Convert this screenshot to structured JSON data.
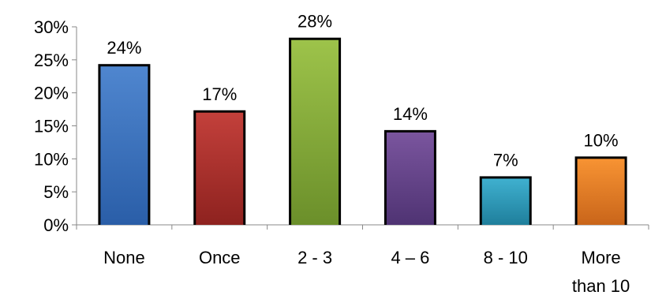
{
  "chart_data": {
    "type": "bar",
    "categories": [
      [
        "None"
      ],
      [
        "Once"
      ],
      [
        "2 - 3"
      ],
      [
        "4 – 6"
      ],
      [
        "8 - 10"
      ],
      [
        "More",
        "than 10"
      ]
    ],
    "values": [
      24,
      17,
      28,
      14,
      7,
      10
    ],
    "data_labels": [
      "24%",
      "17%",
      "28%",
      "14%",
      "7%",
      "10%"
    ],
    "bar_colors": [
      [
        "#4f86cf",
        "#2a5ea8"
      ],
      [
        "#c3403b",
        "#8e221f"
      ],
      [
        "#9dc34a",
        "#6b8f2a"
      ],
      [
        "#7a559e",
        "#4f3373"
      ],
      [
        "#3fb0cf",
        "#1f7f9c"
      ],
      [
        "#f79333",
        "#c9651a"
      ]
    ],
    "y_ticks": [
      "0%",
      "5%",
      "10%",
      "15%",
      "20%",
      "25%",
      "30%"
    ],
    "y_tick_values": [
      0,
      5,
      10,
      15,
      20,
      25,
      30
    ],
    "ylim": [
      0,
      30
    ],
    "grid": false,
    "legend": "none",
    "title": "",
    "xlabel": "",
    "ylabel": ""
  }
}
